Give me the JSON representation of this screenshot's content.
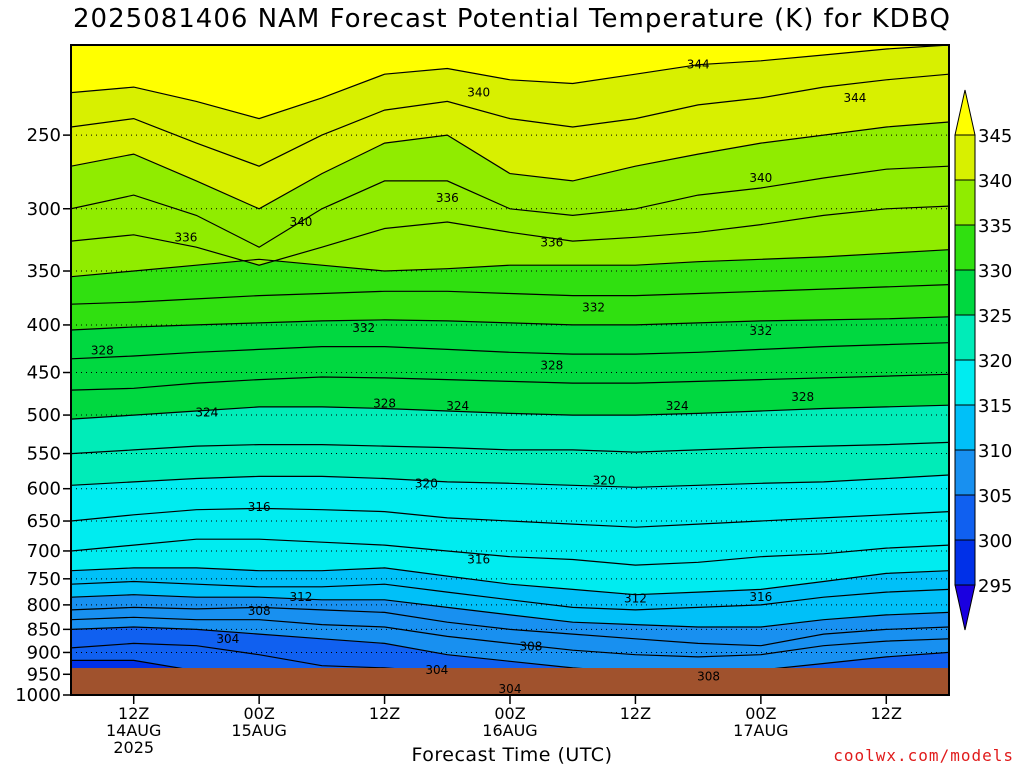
{
  "title": "2025081406 NAM Forecast Potential Temperature (K) for KDBQ",
  "xlabel": "Forecast Time (UTC)",
  "credit": "coolwx.com/models",
  "chart_data": {
    "type": "heatmap",
    "title": "2025081406 NAM Forecast Potential Temperature (K) for KDBQ",
    "xlabel": "Forecast Time (UTC)",
    "ylabel": "",
    "y_scale": "log",
    "ylim": [
      1000,
      200
    ],
    "xlim_hours": [
      6,
      90
    ],
    "x_ticks": [
      {
        "hour": 12,
        "label": [
          "12Z",
          "14AUG",
          "2025"
        ]
      },
      {
        "hour": 24,
        "label": [
          "00Z",
          "15AUG"
        ]
      },
      {
        "hour": 36,
        "label": [
          "12Z"
        ]
      },
      {
        "hour": 48,
        "label": [
          "00Z",
          "16AUG"
        ]
      },
      {
        "hour": 60,
        "label": [
          "12Z"
        ]
      },
      {
        "hour": 72,
        "label": [
          "00Z",
          "17AUG"
        ]
      },
      {
        "hour": 84,
        "label": [
          "12Z"
        ]
      }
    ],
    "y_ticks": [
      250,
      300,
      350,
      400,
      450,
      500,
      550,
      600,
      650,
      700,
      750,
      800,
      850,
      900,
      950,
      1000
    ],
    "grid": true,
    "colorbar": {
      "levels": [
        295,
        300,
        305,
        310,
        315,
        320,
        325,
        330,
        335,
        340,
        345
      ],
      "labels": [
        "345",
        "340",
        "335",
        "330",
        "325",
        "320",
        "315",
        "310",
        "305",
        "300",
        "295"
      ],
      "colors": [
        "#1a00e0",
        "#0030e8",
        "#1060f0",
        "#1890f0",
        "#00c0f8",
        "#00ecf0",
        "#00ecb8",
        "#00d840",
        "#30e010",
        "#90ec00",
        "#d8f000",
        "#ffff00"
      ],
      "placement": "right"
    },
    "ground_color": "#a0522d",
    "contour_interval": 2,
    "column_hours": [
      6,
      12,
      18,
      24,
      30,
      36,
      42,
      48,
      54,
      60,
      66,
      72,
      78,
      84,
      90
    ],
    "isentropes": [
      {
        "k": 300,
        "p": [
          918,
          918,
          942,
          950,
          955,
          960,
          960,
          960,
          960,
          960,
          960,
          960,
          960,
          960,
          960
        ]
      },
      {
        "k": 302,
        "p": [
          890,
          880,
          885,
          905,
          930,
          935,
          945,
          950,
          955,
          955,
          955,
          955,
          950,
          945,
          940
        ]
      },
      {
        "k": 304,
        "p": [
          850,
          845,
          850,
          860,
          870,
          880,
          905,
          920,
          935,
          945,
          945,
          940,
          925,
          910,
          900
        ]
      },
      {
        "k": 306,
        "p": [
          830,
          825,
          830,
          830,
          840,
          845,
          865,
          880,
          895,
          905,
          910,
          905,
          885,
          875,
          870
        ]
      },
      {
        "k": 308,
        "p": [
          810,
          805,
          808,
          805,
          810,
          815,
          835,
          850,
          860,
          870,
          880,
          885,
          860,
          850,
          845
        ]
      },
      {
        "k": 310,
        "p": [
          785,
          780,
          785,
          785,
          790,
          790,
          805,
          820,
          835,
          840,
          845,
          845,
          830,
          820,
          815
        ]
      },
      {
        "k": 312,
        "p": [
          760,
          755,
          760,
          765,
          765,
          760,
          775,
          790,
          805,
          810,
          805,
          800,
          785,
          775,
          770
        ]
      },
      {
        "k": 314,
        "p": [
          735,
          730,
          730,
          735,
          735,
          730,
          745,
          760,
          770,
          780,
          775,
          770,
          755,
          740,
          735
        ]
      },
      {
        "k": 316,
        "p": [
          700,
          690,
          680,
          680,
          685,
          690,
          700,
          710,
          715,
          725,
          720,
          710,
          705,
          695,
          690
        ]
      },
      {
        "k": 318,
        "p": [
          650,
          640,
          632,
          630,
          632,
          635,
          645,
          650,
          655,
          660,
          655,
          650,
          645,
          640,
          635
        ]
      },
      {
        "k": 320,
        "p": [
          595,
          590,
          585,
          582,
          582,
          585,
          590,
          592,
          595,
          598,
          595,
          592,
          590,
          585,
          580
        ]
      },
      {
        "k": 322,
        "p": [
          550,
          545,
          540,
          538,
          538,
          540,
          542,
          545,
          545,
          548,
          545,
          542,
          540,
          538,
          535
        ]
      },
      {
        "k": 324,
        "p": [
          505,
          500,
          495,
          490,
          490,
          492,
          495,
          498,
          500,
          500,
          498,
          495,
          492,
          490,
          488
        ]
      },
      {
        "k": 326,
        "p": [
          470,
          468,
          462,
          458,
          455,
          456,
          458,
          460,
          462,
          462,
          460,
          458,
          456,
          454,
          452
        ]
      },
      {
        "k": 328,
        "p": [
          435,
          432,
          428,
          425,
          422,
          422,
          425,
          428,
          430,
          430,
          428,
          425,
          422,
          420,
          418
        ]
      },
      {
        "k": 330,
        "p": [
          405,
          402,
          400,
          398,
          396,
          395,
          396,
          398,
          400,
          400,
          398,
          396,
          395,
          394,
          392
        ]
      },
      {
        "k": 332,
        "p": [
          380,
          378,
          375,
          372,
          370,
          368,
          368,
          370,
          372,
          372,
          370,
          368,
          366,
          364,
          362
        ]
      },
      {
        "k": 334,
        "p": [
          355,
          350,
          345,
          340,
          345,
          350,
          348,
          345,
          345,
          345,
          342,
          340,
          338,
          335,
          332
        ]
      },
      {
        "k": 336,
        "p": [
          325,
          320,
          330,
          345,
          330,
          315,
          310,
          318,
          325,
          322,
          318,
          312,
          305,
          300,
          298
        ]
      },
      {
        "k": 338,
        "p": [
          300,
          290,
          305,
          330,
          300,
          280,
          280,
          300,
          305,
          300,
          290,
          285,
          278,
          272,
          270
        ]
      },
      {
        "k": 340,
        "p": [
          270,
          262,
          280,
          300,
          275,
          255,
          250,
          275,
          280,
          270,
          262,
          255,
          250,
          245,
          242
        ]
      },
      {
        "k": 342,
        "p": [
          245,
          240,
          255,
          270,
          250,
          235,
          230,
          240,
          245,
          240,
          232,
          228,
          222,
          218,
          215
        ]
      },
      {
        "k": 344,
        "p": [
          225,
          222,
          230,
          240,
          228,
          215,
          212,
          218,
          220,
          215,
          210,
          208,
          205,
          202,
          200
        ]
      }
    ],
    "contour_labels": [
      {
        "text": "344",
        "hour": 66,
        "p": 210
      },
      {
        "text": "344",
        "hour": 81,
        "p": 228
      },
      {
        "text": "340",
        "hour": 45,
        "p": 225
      },
      {
        "text": "340",
        "hour": 72,
        "p": 278
      },
      {
        "text": "340",
        "hour": 28,
        "p": 310
      },
      {
        "text": "336",
        "hour": 42,
        "p": 292
      },
      {
        "text": "336",
        "hour": 17,
        "p": 322
      },
      {
        "text": "336",
        "hour": 52,
        "p": 326
      },
      {
        "text": "332",
        "hour": 34,
        "p": 403
      },
      {
        "text": "332",
        "hour": 56,
        "p": 383
      },
      {
        "text": "332",
        "hour": 72,
        "p": 406
      },
      {
        "text": "328",
        "hour": 9,
        "p": 426
      },
      {
        "text": "328",
        "hour": 36,
        "p": 486
      },
      {
        "text": "328",
        "hour": 52,
        "p": 442
      },
      {
        "text": "328",
        "hour": 76,
        "p": 478
      },
      {
        "text": "324",
        "hour": 19,
        "p": 497
      },
      {
        "text": "324",
        "hour": 43,
        "p": 489
      },
      {
        "text": "324",
        "hour": 64,
        "p": 489
      },
      {
        "text": "320",
        "hour": 40,
        "p": 592
      },
      {
        "text": "320",
        "hour": 57,
        "p": 588
      },
      {
        "text": "316",
        "hour": 24,
        "p": 628
      },
      {
        "text": "316",
        "hour": 45,
        "p": 715
      },
      {
        "text": "316",
        "hour": 72,
        "p": 785
      },
      {
        "text": "312",
        "hour": 28,
        "p": 785
      },
      {
        "text": "312",
        "hour": 60,
        "p": 787
      },
      {
        "text": "308",
        "hour": 24,
        "p": 812
      },
      {
        "text": "308",
        "hour": 50,
        "p": 887
      },
      {
        "text": "308",
        "hour": 67,
        "p": 955
      },
      {
        "text": "304",
        "hour": 21,
        "p": 870
      },
      {
        "text": "304",
        "hour": 41,
        "p": 940
      },
      {
        "text": "304",
        "hour": 48,
        "p": 985
      }
    ]
  }
}
